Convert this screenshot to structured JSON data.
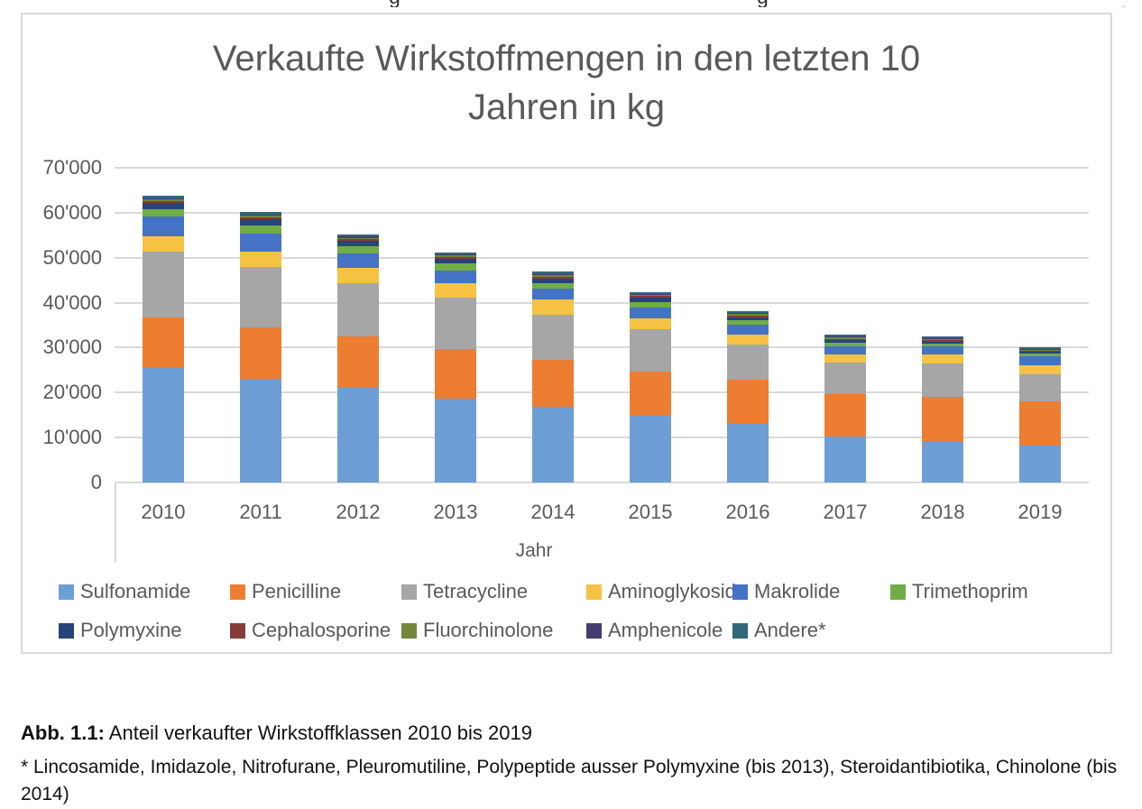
{
  "top_fragments": [
    "g",
    "g",
    "„"
  ],
  "chart": {
    "title": "Verkaufte Wirkstoffmengen in den letzten 10 Jahren in kg",
    "x_axis_title": "Jahr"
  },
  "colors": {
    "grid": "#d9d9d9",
    "axis_text": "#595959"
  },
  "chart_data": {
    "type": "bar",
    "stacked": true,
    "title": "Verkaufte Wirkstoffmengen in den letzten 10 Jahren in kg",
    "xlabel": "Jahr",
    "ylabel": "",
    "ylim": [
      0,
      70000
    ],
    "grid": true,
    "legend_position": "bottom",
    "y_axis": {
      "tick_values": [
        70000,
        60000,
        50000,
        40000,
        30000,
        20000,
        10000,
        0
      ],
      "tick_labels": [
        "70'000",
        "60'000",
        "50'000",
        "40'000",
        "30'000",
        "20'000",
        "10'000",
        "0"
      ]
    },
    "categories": [
      "2010",
      "2011",
      "2012",
      "2013",
      "2014",
      "2015",
      "2016",
      "2017",
      "2018",
      "2019"
    ],
    "series": [
      {
        "name": "Sulfonamide",
        "color": "#6D9ED6",
        "values": [
          25500,
          23000,
          21300,
          18700,
          16900,
          14900,
          13200,
          10200,
          9100,
          8200
        ]
      },
      {
        "name": "Penicilline",
        "color": "#ED7D31",
        "values": [
          11300,
          11500,
          11200,
          10900,
          10300,
          9800,
          9600,
          9500,
          10000,
          9800
        ]
      },
      {
        "name": "Tetracycline",
        "color": "#A6A6A6",
        "values": [
          14600,
          13500,
          11900,
          11600,
          10100,
          9300,
          7900,
          6900,
          7300,
          6100
        ]
      },
      {
        "name": "Aminoglykoside",
        "color": "#F5C243",
        "values": [
          3400,
          3400,
          3400,
          3100,
          3400,
          2500,
          2100,
          1900,
          2100,
          1900
        ]
      },
      {
        "name": "Makrolide",
        "color": "#4472C4",
        "values": [
          4300,
          3900,
          3200,
          2800,
          2400,
          2500,
          2400,
          1800,
          1700,
          2000
        ]
      },
      {
        "name": "Trimethoprim",
        "color": "#70AD47",
        "values": [
          1700,
          1900,
          1600,
          1600,
          1300,
          1100,
          900,
          800,
          700,
          600
        ]
      },
      {
        "name": "Polymyxine",
        "color": "#264478",
        "values": [
          1300,
          1300,
          1100,
          1000,
          900,
          1100,
          700,
          500,
          400,
          400
        ]
      },
      {
        "name": "Cephalosporine",
        "color": "#843C39",
        "values": [
          400,
          400,
          400,
          400,
          400,
          250,
          350,
          300,
          300,
          300
        ]
      },
      {
        "name": "Fluorchinolone",
        "color": "#75853C",
        "values": [
          400,
          400,
          350,
          350,
          350,
          250,
          300,
          300,
          250,
          250
        ]
      },
      {
        "name": "Amphenicole",
        "color": "#453D70",
        "values": [
          300,
          300,
          250,
          250,
          250,
          150,
          200,
          200,
          150,
          150
        ]
      },
      {
        "name": "Andere*",
        "color": "#31697A",
        "values": [
          500,
          500,
          400,
          500,
          600,
          400,
          500,
          500,
          400,
          400
        ]
      }
    ]
  },
  "caption": {
    "label": "Abb. 1.1:",
    "text": " Anteil verkaufter Wirkstoffklassen 2010 bis 2019"
  },
  "footnote": "* Lincosamide, Imidazole, Nitrofurane, Pleuromutiline, Polypeptide ausser Polymyxine (bis 2013), Steroidantibiotika, Chinolone (bis 2014)"
}
